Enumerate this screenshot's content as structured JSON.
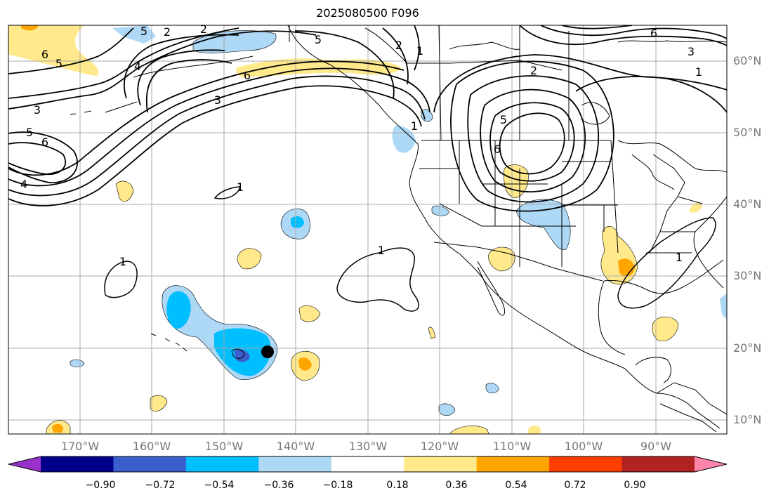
{
  "title": "2025080500 F096",
  "lat_labels": [
    "60°N",
    "50°N",
    "40°N",
    "30°N",
    "20°N",
    "10°N"
  ],
  "lon_labels": [
    "170°W",
    "160°W",
    "150°W",
    "140°W",
    "130°W",
    "120°W",
    "110°W",
    "100°W",
    "90°W"
  ],
  "colorbar": {
    "ticks": [
      "−0.90",
      "−0.72",
      "−0.54",
      "−0.36",
      "−0.18",
      "0.18",
      "0.36",
      "0.54",
      "0.72",
      "0.90"
    ],
    "colors": [
      "#9932cc",
      "#00008b",
      "#3a5fcd",
      "#00bfff",
      "#add8f6",
      "#ffffff",
      "#ffe98a",
      "#ffa500",
      "#ff3e00",
      "#b22222",
      "#ff85aa"
    ]
  },
  "contour_labels": [
    "5",
    "2",
    "2",
    "5",
    "6",
    "4",
    "3",
    "2",
    "1",
    "6",
    "5",
    "6",
    "3",
    "3",
    "5",
    "6",
    "4",
    "1",
    "5",
    "6",
    "2",
    "1",
    "1",
    "1",
    "1",
    "1"
  ],
  "colors": {
    "land_line": "#000000",
    "grid": "#a9a9a9",
    "lat_lon_label": "#777777"
  }
}
